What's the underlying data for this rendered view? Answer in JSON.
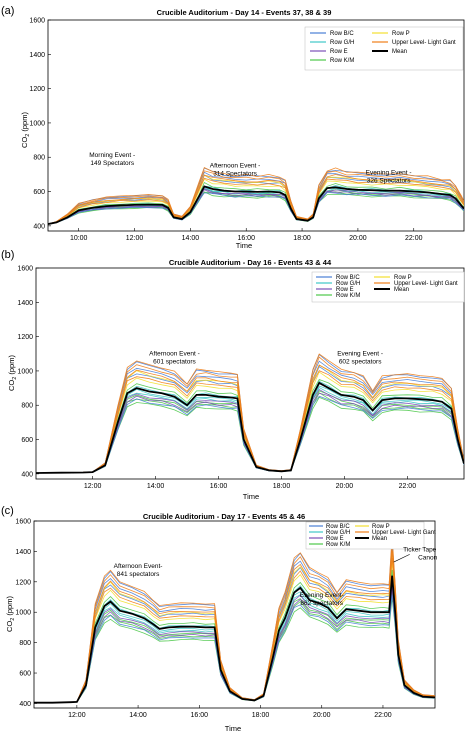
{
  "chart_data": [
    {
      "type": "line",
      "panel_label": "(a)",
      "title": "Crucible Auditorium - Day 14 - Events 37, 38 & 39",
      "xlabel": "Time",
      "ylabel_main": "CO",
      "ylabel_sub": "2",
      "ylabel_unit": "(ppm)",
      "xlim": [
        8.9,
        23.8
      ],
      "ylim": [
        370,
        1600
      ],
      "yticks": [
        400,
        600,
        800,
        1000,
        1200,
        1400,
        1600
      ],
      "xticks": [
        {
          "value": 10,
          "label": "10:00"
        },
        {
          "value": 12,
          "label": "12:00"
        },
        {
          "value": 14,
          "label": "14:00"
        },
        {
          "value": 16,
          "label": "16:00"
        },
        {
          "value": 18,
          "label": "18:00"
        },
        {
          "value": 20,
          "label": "20:00"
        },
        {
          "value": 22,
          "label": "22:00"
        }
      ],
      "legend_position": "top-right",
      "legend": [
        {
          "name": "Row B/C",
          "color": "#4a7fd6"
        },
        {
          "name": "Row P",
          "color": "#f2e030"
        },
        {
          "name": "Row G/H",
          "color": "#3ec7c7"
        },
        {
          "name": "Upper Level- Light Gant",
          "color": "#f07f19"
        },
        {
          "name": "Row E",
          "color": "#7a4fb8"
        },
        {
          "name": "Mean",
          "color": "#000000"
        },
        {
          "name": "Row K/M",
          "color": "#4cc84a"
        }
      ],
      "annotations": [
        {
          "line1": "Morning Event -",
          "line2": "149 Spectators",
          "x": 11.2,
          "y": 800
        },
        {
          "line1": "Afternoon Event -",
          "line2": "314 Spectators",
          "x": 15.6,
          "y": 740
        },
        {
          "line1": "Evening Event -",
          "line2": "326 Spectators",
          "x": 21.1,
          "y": 700
        }
      ],
      "mean": {
        "x": [
          8.9,
          9.2,
          9.6,
          10.0,
          10.5,
          11.0,
          11.5,
          12.0,
          12.5,
          13.0,
          13.2,
          13.4,
          13.7,
          14.0,
          14.3,
          14.5,
          14.8,
          15.2,
          15.6,
          16.0,
          16.4,
          16.8,
          17.2,
          17.4,
          17.6,
          17.8,
          18.2,
          18.4,
          18.6,
          18.9,
          19.2,
          19.6,
          20.0,
          20.5,
          21.0,
          21.5,
          22.0,
          22.5,
          23.0,
          23.3,
          23.5,
          23.7,
          23.8
        ],
        "y": [
          410,
          420,
          450,
          490,
          505,
          515,
          520,
          522,
          524,
          522,
          505,
          450,
          440,
          480,
          570,
          630,
          615,
          605,
          600,
          600,
          598,
          600,
          595,
          580,
          500,
          440,
          430,
          450,
          560,
          620,
          625,
          615,
          610,
          608,
          605,
          605,
          600,
          595,
          585,
          580,
          560,
          520,
          500
        ]
      },
      "spread_low": -40,
      "spread_high": 110
    },
    {
      "type": "line",
      "panel_label": "(b)",
      "title": "Crucible Auditorium - Day 16 - Events 43 & 44",
      "xlabel": "Time",
      "ylabel_main": "CO",
      "ylabel_sub": "2",
      "ylabel_unit": "(ppm)",
      "xlim": [
        10.2,
        23.8
      ],
      "ylim": [
        370,
        1600
      ],
      "yticks": [
        400,
        600,
        800,
        1000,
        1200,
        1400,
        1600
      ],
      "xticks": [
        {
          "value": 12,
          "label": "12:00"
        },
        {
          "value": 14,
          "label": "14:00"
        },
        {
          "value": 16,
          "label": "16:00"
        },
        {
          "value": 18,
          "label": "18:00"
        },
        {
          "value": 20,
          "label": "20:00"
        },
        {
          "value": 22,
          "label": "22:00"
        }
      ],
      "legend_position": "top-right",
      "legend": [
        {
          "name": "Row B/C",
          "color": "#4a7fd6"
        },
        {
          "name": "Row P",
          "color": "#f2e030"
        },
        {
          "name": "Row G/H",
          "color": "#3ec7c7"
        },
        {
          "name": "Upper Level- Light Gant",
          "color": "#f07f19"
        },
        {
          "name": "Row E",
          "color": "#7a4fb8"
        },
        {
          "name": "Mean",
          "color": "#000000"
        },
        {
          "name": "Row K/M",
          "color": "#4cc84a"
        }
      ],
      "annotations": [
        {
          "line1": "Afternoon Event -",
          "line2": "601 spectators",
          "x": 14.6,
          "y": 1090
        },
        {
          "line1": "Evening Event -",
          "line2": "602 spectators",
          "x": 20.5,
          "y": 1090
        }
      ],
      "mean": {
        "x": [
          10.2,
          11.0,
          11.7,
          12.0,
          12.4,
          12.8,
          13.1,
          13.4,
          13.8,
          14.2,
          14.6,
          15.0,
          15.3,
          15.6,
          16.0,
          16.4,
          16.6,
          16.8,
          17.2,
          17.6,
          18.0,
          18.3,
          18.6,
          19.0,
          19.2,
          19.5,
          19.9,
          20.3,
          20.6,
          20.9,
          21.2,
          21.6,
          22.0,
          22.4,
          22.8,
          23.1,
          23.4,
          23.6,
          23.8
        ],
        "y": [
          405,
          407,
          408,
          410,
          450,
          700,
          870,
          900,
          880,
          870,
          850,
          800,
          860,
          860,
          850,
          845,
          840,
          600,
          440,
          420,
          415,
          420,
          600,
          860,
          930,
          900,
          860,
          850,
          830,
          770,
          830,
          840,
          840,
          835,
          830,
          820,
          780,
          600,
          460
        ]
      },
      "spread_low": -90,
      "spread_high": 170
    },
    {
      "type": "line",
      "panel_label": "(c)",
      "title": "Crucible Auditorium - Day 17 - Events 45 & 46",
      "xlabel": "Time",
      "ylabel_main": "CO",
      "ylabel_sub": "2",
      "ylabel_unit": "(ppm)",
      "xlim": [
        10.6,
        23.7
      ],
      "ylim": [
        370,
        1600
      ],
      "yticks": [
        400,
        600,
        800,
        1000,
        1200,
        1400,
        1600
      ],
      "xticks": [
        {
          "value": 12,
          "label": "12:00"
        },
        {
          "value": 14,
          "label": "14:00"
        },
        {
          "value": 16,
          "label": "16:00"
        },
        {
          "value": 18,
          "label": "18:00"
        },
        {
          "value": 20,
          "label": "20:00"
        },
        {
          "value": 22,
          "label": "22:00"
        }
      ],
      "legend_position": "top-right",
      "legend": [
        {
          "name": "Row B/C",
          "color": "#4a7fd6"
        },
        {
          "name": "Row P",
          "color": "#f2e030"
        },
        {
          "name": "Row G/H",
          "color": "#3ec7c7"
        },
        {
          "name": "Upper Level- Light Gant",
          "color": "#f07f19"
        },
        {
          "name": "Row E",
          "color": "#7a4fb8"
        },
        {
          "name": "Mean",
          "color": "#000000"
        },
        {
          "name": "Row K/M",
          "color": "#4cc84a"
        }
      ],
      "annotations": [
        {
          "line1": "Afternoon Event-",
          "line2": "841 spectators",
          "x": 14.0,
          "y": 1290
        },
        {
          "line1": "Evening Event-",
          "line2": "862 spectators",
          "x": 20.0,
          "y": 1100
        }
      ],
      "callout": {
        "line1": "Ticker Tape",
        "line2": "Canon",
        "x": 23.2,
        "y": 1400,
        "target_x": 22.35,
        "target_y": 1330
      },
      "mean": {
        "x": [
          10.6,
          11.2,
          11.8,
          12.0,
          12.3,
          12.6,
          12.9,
          13.1,
          13.4,
          13.8,
          14.2,
          14.5,
          14.7,
          15.0,
          15.4,
          15.8,
          16.2,
          16.5,
          16.7,
          17.0,
          17.4,
          17.8,
          18.1,
          18.4,
          18.6,
          18.8,
          19.1,
          19.3,
          19.6,
          19.9,
          20.2,
          20.5,
          20.8,
          21.2,
          21.6,
          22.0,
          22.2,
          22.3,
          22.4,
          22.5,
          22.7,
          23.0,
          23.3,
          23.7
        ],
        "y": [
          405,
          405,
          408,
          410,
          520,
          900,
          1040,
          1070,
          1010,
          990,
          960,
          920,
          890,
          900,
          905,
          905,
          900,
          900,
          620,
          480,
          430,
          420,
          450,
          700,
          880,
          960,
          1130,
          1160,
          1080,
          1060,
          1030,
          960,
          1020,
          1010,
          1000,
          1000,
          1000,
          1240,
          1000,
          720,
          520,
          470,
          445,
          440
        ]
      },
      "spread_low": -150,
      "spread_high": 260
    }
  ]
}
